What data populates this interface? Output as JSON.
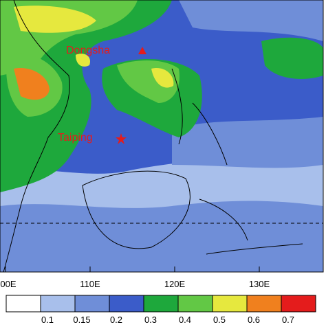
{
  "map": {
    "x_axis_labels": [
      "00E",
      "110E",
      "120E",
      "130E"
    ],
    "annotations": [
      {
        "label": "Dongsha"
      },
      {
        "label": "Taiping"
      }
    ],
    "colorbar": {
      "levels": [
        0.1,
        0.15,
        0.2,
        0.3,
        0.4,
        0.5,
        0.6,
        0.7
      ],
      "colors": [
        "#ffffff",
        "#a8bfeb",
        "#6f8ed8",
        "#3b5cc9",
        "#1ea83c",
        "#62c845",
        "#e6e83e",
        "#f0801e",
        "#e41c1c"
      ]
    }
  }
}
